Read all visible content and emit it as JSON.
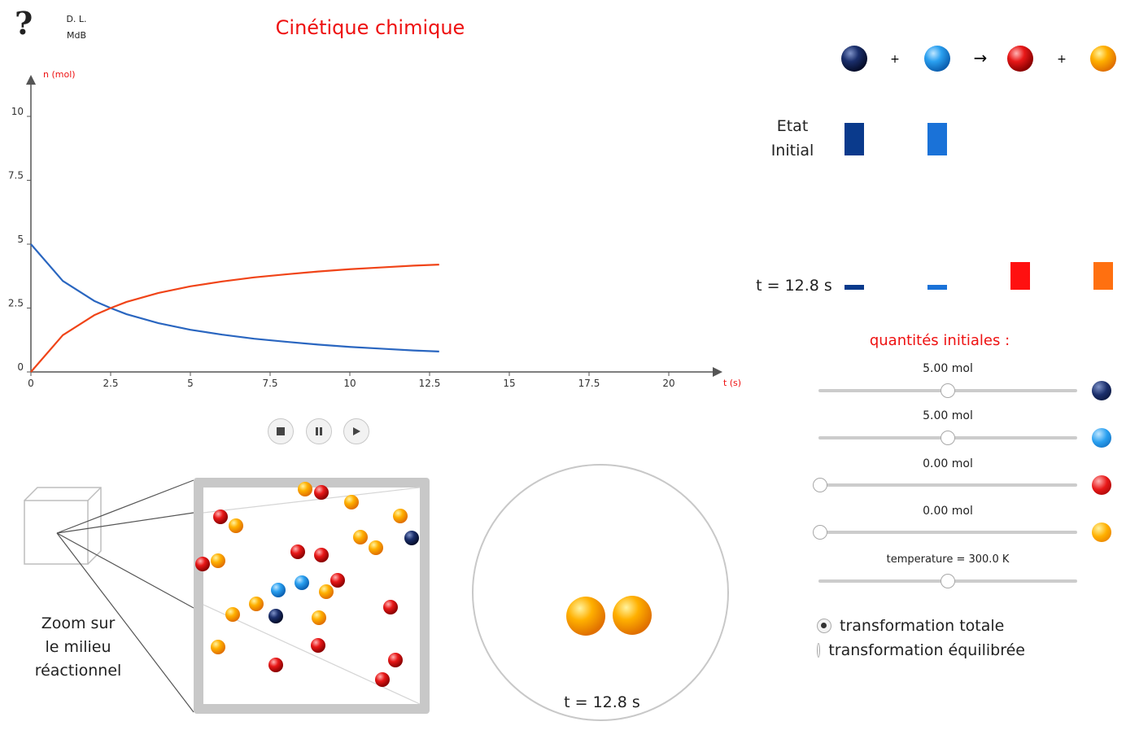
{
  "header": {
    "help_label": "?",
    "credit_line1": "D. L.",
    "credit_line2": "MdB",
    "title": "Cinétique chimique"
  },
  "colors": {
    "species_a": "#0a1e5a",
    "species_b": "#1a8ee8",
    "species_c": "#e01010",
    "species_d": "#ffaa00",
    "curve_reactant": "#2a66c0",
    "curve_product": "#f04418",
    "title": "#ee1111"
  },
  "chart_data": {
    "type": "line",
    "xlabel": "t (s)",
    "ylabel": "n (mol)",
    "xlim": [
      0,
      21
    ],
    "ylim": [
      0,
      11
    ],
    "x_ticks": [
      "0",
      "2.5",
      "5",
      "7.5",
      "10",
      "12.5",
      "15",
      "17.5",
      "20"
    ],
    "x_tick_values": [
      0,
      2.5,
      5,
      7.5,
      10,
      12.5,
      15,
      17.5,
      20
    ],
    "y_ticks": [
      "0",
      "2.5",
      "5",
      "7.5",
      "10"
    ],
    "y_tick_values": [
      0,
      2.5,
      5,
      7.5,
      10
    ],
    "grid": false,
    "series": [
      {
        "color": "#2a66c0",
        "x": [
          0,
          1,
          2,
          2.5,
          3,
          4,
          5,
          6,
          7,
          8,
          9,
          10,
          11,
          12,
          12.8
        ],
        "y": [
          5.0,
          3.56,
          2.77,
          2.5,
          2.26,
          1.91,
          1.65,
          1.46,
          1.3,
          1.18,
          1.07,
          0.98,
          0.91,
          0.84,
          0.8
        ]
      },
      {
        "color": "#f04418",
        "x": [
          0,
          1,
          2,
          2.5,
          3,
          4,
          5,
          6,
          7,
          8,
          9,
          10,
          11,
          12,
          12.8
        ],
        "y": [
          0,
          1.44,
          2.23,
          2.5,
          2.74,
          3.09,
          3.35,
          3.54,
          3.7,
          3.82,
          3.93,
          4.02,
          4.09,
          4.16,
          4.2
        ]
      }
    ]
  },
  "playback": {
    "stop_icon": "stop-icon",
    "pause_icon": "pause-icon",
    "play_icon": "play-icon"
  },
  "reaction": {
    "plus1": "+",
    "arrow": "→",
    "plus2": "+",
    "initial_label_1": "Etat",
    "initial_label_2": "Initial",
    "initial_amounts": [
      5.0,
      5.0,
      0.0,
      0.0
    ],
    "current_label": "t = 12.8 s",
    "current_amounts": [
      0.8,
      0.8,
      4.2,
      4.2
    ]
  },
  "controls": {
    "title": "quantités initiales :",
    "sliders": [
      {
        "value_text": "5.00 mol",
        "fraction": 0.5
      },
      {
        "value_text": "5.00 mol",
        "fraction": 0.5
      },
      {
        "value_text": "0.00 mol",
        "fraction": 0.0
      },
      {
        "value_text": "0.00 mol",
        "fraction": 0.0
      }
    ],
    "temperature": {
      "value_text": "temperature = 300.0 K",
      "fraction": 0.5
    },
    "radio": [
      {
        "label": "transformation totale",
        "checked": true
      },
      {
        "label": "transformation équilibrée",
        "checked": false
      }
    ]
  },
  "zoom": {
    "label_1": "Zoom sur",
    "label_2": "le milieu",
    "label_3": "réactionnel"
  },
  "collision": {
    "time_label": "t = 12.8 s"
  }
}
